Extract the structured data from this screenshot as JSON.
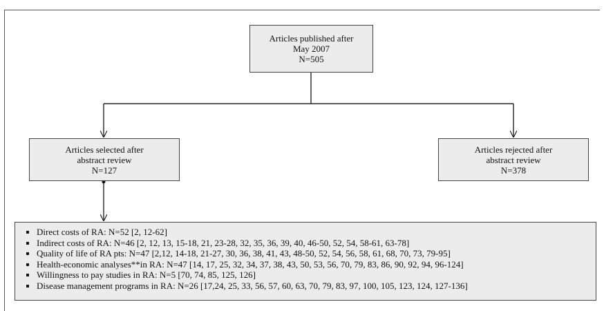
{
  "boxes": {
    "top": {
      "lines": [
        "Articles published after",
        "May 2007",
        "N=505"
      ]
    },
    "left": {
      "lines": [
        "Articles selected after",
        "abstract review",
        "N=127"
      ]
    },
    "right": {
      "lines": [
        "Articles rejected after",
        "abstract review",
        "N=378"
      ]
    }
  },
  "categories": [
    "Direct costs of RA: N=52 [2, 12-62]",
    "Indirect costs of RA: N=46 [2, 12, 13, 15-18, 21, 23-28, 32, 35, 36, 39, 40, 46-50, 52, 54, 58-61, 63-78]",
    "Quality of life of RA pts: N=47 [2,12, 14-18, 21-27, 30, 36, 38, 41, 43, 48-50, 52, 54, 56, 58, 61, 68, 70, 73, 79-95]",
    "Health-economic analyses**in RA: N=47 [14, 17, 25, 32, 34, 37, 38, 43, 50, 53, 56, 70, 79, 83, 86, 90, 92, 94, 96-124]",
    "Willingness to pay studies in RA: N=5 [70, 74, 85, 125, 126]",
    "Disease management programs in RA: N=26 [17,24, 25, 33, 56, 57, 60, 63, 70, 79, 83, 97, 100, 105, 123, 124, 127-136]"
  ]
}
